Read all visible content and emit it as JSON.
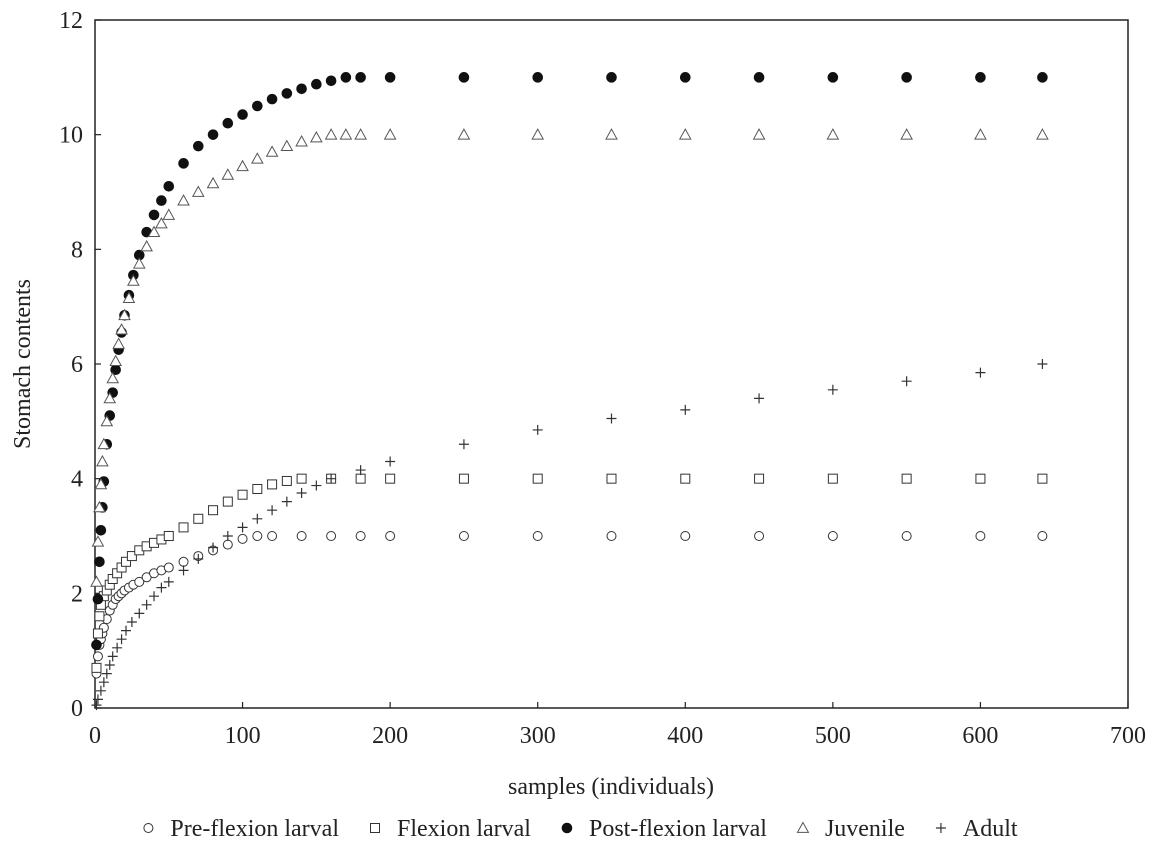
{
  "chart_data": {
    "type": "scatter",
    "xlabel": "samples (individuals)",
    "ylabel": "Stomach contents",
    "xlim": [
      0,
      700
    ],
    "ylim": [
      0,
      12
    ],
    "x_ticks": [
      "0",
      "100",
      "200",
      "300",
      "400",
      "500",
      "600",
      "700"
    ],
    "y_ticks": [
      "0",
      "2",
      "4",
      "6",
      "8",
      "10",
      "12"
    ],
    "grid": false,
    "legend_position": "bottom",
    "series": [
      {
        "name": "Pre-flexion larval",
        "marker": "open-circle",
        "x": [
          1,
          2,
          3,
          4,
          5,
          6,
          8,
          10,
          12,
          14,
          16,
          18,
          20,
          23,
          26,
          30,
          35,
          40,
          45,
          50,
          60,
          70,
          80,
          90,
          100,
          110,
          120,
          140,
          160,
          180,
          200,
          250,
          300,
          350,
          400,
          450,
          500,
          550,
          600,
          642
        ],
        "values": [
          0.6,
          0.9,
          1.1,
          1.2,
          1.3,
          1.4,
          1.55,
          1.7,
          1.8,
          1.9,
          1.95,
          2.0,
          2.05,
          2.1,
          2.15,
          2.2,
          2.28,
          2.35,
          2.4,
          2.45,
          2.55,
          2.65,
          2.75,
          2.85,
          2.95,
          3.0,
          3.0,
          3.0,
          3.0,
          3.0,
          3.0,
          3.0,
          3.0,
          3.0,
          3.0,
          3.0,
          3.0,
          3.0,
          3.0,
          3.0
        ]
      },
      {
        "name": "Flexion larval",
        "marker": "open-square",
        "x": [
          1,
          2,
          3,
          4,
          6,
          8,
          10,
          12,
          15,
          18,
          21,
          25,
          30,
          35,
          40,
          45,
          50,
          60,
          70,
          80,
          90,
          100,
          110,
          120,
          130,
          140,
          160,
          180,
          200,
          250,
          300,
          350,
          400,
          450,
          500,
          550,
          600,
          642
        ],
        "values": [
          0.7,
          1.3,
          1.6,
          1.8,
          1.95,
          2.05,
          2.15,
          2.25,
          2.35,
          2.45,
          2.55,
          2.65,
          2.75,
          2.82,
          2.88,
          2.94,
          3.0,
          3.15,
          3.3,
          3.45,
          3.6,
          3.72,
          3.82,
          3.9,
          3.96,
          4.0,
          4.0,
          4.0,
          4.0,
          4.0,
          4.0,
          4.0,
          4.0,
          4.0,
          4.0,
          4.0,
          4.0,
          4.0
        ]
      },
      {
        "name": "Post-flexion larval",
        "marker": "filled-circle",
        "x": [
          1,
          2,
          3,
          4,
          5,
          6,
          8,
          10,
          12,
          14,
          16,
          18,
          20,
          23,
          26,
          30,
          35,
          40,
          45,
          50,
          60,
          70,
          80,
          90,
          100,
          110,
          120,
          130,
          140,
          150,
          160,
          170,
          180,
          200,
          250,
          300,
          350,
          400,
          450,
          500,
          550,
          600,
          642
        ],
        "values": [
          1.1,
          1.9,
          2.55,
          3.1,
          3.5,
          3.95,
          4.6,
          5.1,
          5.5,
          5.9,
          6.25,
          6.55,
          6.85,
          7.2,
          7.55,
          7.9,
          8.3,
          8.6,
          8.85,
          9.1,
          9.5,
          9.8,
          10.0,
          10.2,
          10.35,
          10.5,
          10.62,
          10.72,
          10.8,
          10.88,
          10.94,
          11.0,
          11.0,
          11.0,
          11.0,
          11.0,
          11.0,
          11.0,
          11.0,
          11.0,
          11.0,
          11.0,
          11.0
        ]
      },
      {
        "name": "Juvenile",
        "marker": "open-triangle",
        "x": [
          1,
          2,
          3,
          4,
          5,
          6,
          8,
          10,
          12,
          14,
          16,
          18,
          20,
          23,
          26,
          30,
          35,
          40,
          45,
          50,
          60,
          70,
          80,
          90,
          100,
          110,
          120,
          130,
          140,
          150,
          160,
          170,
          180,
          200,
          250,
          300,
          350,
          400,
          450,
          500,
          550,
          600,
          642
        ],
        "values": [
          2.2,
          2.9,
          3.5,
          3.9,
          4.3,
          4.6,
          5.0,
          5.4,
          5.75,
          6.05,
          6.35,
          6.6,
          6.85,
          7.15,
          7.45,
          7.75,
          8.05,
          8.3,
          8.45,
          8.6,
          8.85,
          9.0,
          9.15,
          9.3,
          9.45,
          9.58,
          9.7,
          9.8,
          9.88,
          9.95,
          10.0,
          10.0,
          10.0,
          10.0,
          10.0,
          10.0,
          10.0,
          10.0,
          10.0,
          10.0,
          10.0,
          10.0,
          10.0
        ]
      },
      {
        "name": "Adult",
        "marker": "plus",
        "x": [
          1,
          2,
          4,
          6,
          8,
          10,
          12,
          15,
          18,
          21,
          25,
          30,
          35,
          40,
          45,
          50,
          60,
          70,
          80,
          90,
          100,
          110,
          120,
          130,
          140,
          150,
          160,
          180,
          200,
          250,
          300,
          350,
          400,
          450,
          500,
          550,
          600,
          642
        ],
        "values": [
          0.05,
          0.15,
          0.3,
          0.45,
          0.6,
          0.75,
          0.9,
          1.05,
          1.2,
          1.35,
          1.5,
          1.65,
          1.8,
          1.95,
          2.1,
          2.2,
          2.4,
          2.6,
          2.8,
          3.0,
          3.15,
          3.3,
          3.45,
          3.6,
          3.75,
          3.88,
          4.0,
          4.15,
          4.3,
          4.6,
          4.85,
          5.05,
          5.2,
          5.4,
          5.55,
          5.7,
          5.85,
          6.0
        ]
      }
    ]
  }
}
